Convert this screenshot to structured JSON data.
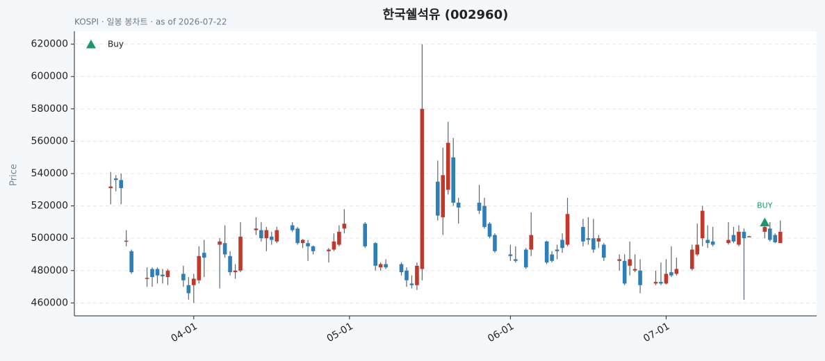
{
  "chart_data": {
    "type": "candlestick",
    "title": "한국쉘석유 (002960)",
    "subtitle": "KOSPI · 일봉 봉차트 · as of 2026-07-22",
    "ylabel": "Price",
    "up_color": "#c0392b",
    "down_color": "#2e7fb8",
    "wick_color": "#5a6570",
    "x": [
      "2026-03-16",
      "2026-03-17",
      "2026-03-18",
      "2026-03-19",
      "2026-03-20",
      "2026-03-23",
      "2026-03-24",
      "2026-03-25",
      "2026-03-26",
      "2026-03-27",
      "2026-03-30",
      "2026-03-31",
      "2026-04-01",
      "2026-04-02",
      "2026-04-03",
      "2026-04-06",
      "2026-04-07",
      "2026-04-08",
      "2026-04-09",
      "2026-04-10",
      "2026-04-13",
      "2026-04-14",
      "2026-04-15",
      "2026-04-16",
      "2026-04-17",
      "2026-04-20",
      "2026-04-21",
      "2026-04-22",
      "2026-04-23",
      "2026-04-24",
      "2026-04-27",
      "2026-04-28",
      "2026-04-29",
      "2026-04-30",
      "2026-05-04",
      "2026-05-06",
      "2026-05-07",
      "2026-05-08",
      "2026-05-11",
      "2026-05-12",
      "2026-05-13",
      "2026-05-14",
      "2026-05-15",
      "2026-05-18",
      "2026-05-19",
      "2026-05-20",
      "2026-05-21",
      "2026-05-22",
      "2026-05-26",
      "2026-05-27",
      "2026-05-28",
      "2026-05-29",
      "2026-06-01",
      "2026-06-02",
      "2026-06-04",
      "2026-06-05",
      "2026-06-08",
      "2026-06-09",
      "2026-06-10",
      "2026-06-11",
      "2026-06-12",
      "2026-06-15",
      "2026-06-16",
      "2026-06-17",
      "2026-06-18",
      "2026-06-19",
      "2026-06-22",
      "2026-06-23",
      "2026-06-24",
      "2026-06-25",
      "2026-06-26",
      "2026-06-29",
      "2026-06-30",
      "2026-07-01",
      "2026-07-02",
      "2026-07-03",
      "2026-07-06",
      "2026-07-07",
      "2026-07-08",
      "2026-07-09",
      "2026-07-10",
      "2026-07-13",
      "2026-07-14",
      "2026-07-15",
      "2026-07-16",
      "2026-07-17",
      "2026-07-20",
      "2026-07-21",
      "2026-07-22",
      "2026-07-23"
    ],
    "open": [
      531000,
      537000,
      536000,
      498000,
      492000,
      475000,
      481000,
      481000,
      477500,
      476000,
      478000,
      471000,
      471000,
      474000,
      491000,
      496000,
      497000,
      489000,
      479000,
      480000,
      505000,
      505000,
      500000,
      501000,
      498000,
      508000,
      506000,
      497000,
      497000,
      495000,
      492000,
      493000,
      496000,
      506000,
      509000,
      497000,
      482000,
      484000,
      484000,
      480000,
      472000,
      471000,
      481000,
      535000,
      513000,
      530000,
      550000,
      522000,
      522000,
      520000,
      509000,
      502000,
      490000,
      487000,
      493000,
      493000,
      498000,
      490000,
      493000,
      499000,
      496000,
      507000,
      500000,
      500000,
      498000,
      496000,
      486000,
      486000,
      483000,
      480000,
      480000,
      472000,
      473000,
      472000,
      479000,
      478000,
      481000,
      490000,
      500000,
      499000,
      498000,
      497000,
      502000,
      496000,
      504000,
      501000,
      504000,
      506000,
      502000,
      497000
    ],
    "high": [
      541000,
      539000,
      540000,
      505000,
      493000,
      482000,
      482000,
      482000,
      481000,
      481000,
      483000,
      476000,
      478000,
      495000,
      499000,
      500000,
      508000,
      492000,
      484000,
      510000,
      513000,
      510000,
      507000,
      504000,
      507000,
      510000,
      507000,
      499500,
      499000,
      495500,
      494000,
      503000,
      508000,
      518000,
      510000,
      497500,
      485000,
      487000,
      485000,
      482000,
      477000,
      485000,
      620000,
      548000,
      556000,
      572000,
      562000,
      525000,
      533000,
      525000,
      510000,
      503000,
      496000,
      495000,
      494000,
      516000,
      498500,
      492000,
      496000,
      503000,
      525000,
      512000,
      513000,
      512000,
      502000,
      497000,
      490000,
      490000,
      498000,
      490000,
      487000,
      480000,
      485000,
      487000,
      495000,
      488000,
      496000,
      509000,
      520000,
      508000,
      507000,
      510000,
      507000,
      508000,
      506000,
      501500,
      512000,
      510000,
      503000,
      511000
    ],
    "low": [
      521000,
      529000,
      521000,
      495000,
      478000,
      470000,
      470000,
      472000,
      472000,
      471000,
      470000,
      462000,
      460000,
      472000,
      476000,
      469000,
      488000,
      477000,
      475000,
      479000,
      502000,
      498000,
      492000,
      496000,
      497000,
      504000,
      496000,
      494000,
      486000,
      490000,
      485000,
      492000,
      495000,
      503000,
      494000,
      480000,
      480000,
      481000,
      477000,
      470000,
      469000,
      468000,
      474000,
      511000,
      502000,
      527000,
      520000,
      509000,
      515000,
      506000,
      500000,
      491000,
      486000,
      485000,
      481000,
      489000,
      484000,
      485000,
      487000,
      491000,
      495000,
      495000,
      496000,
      491000,
      494000,
      486000,
      480000,
      471000,
      477000,
      479000,
      466000,
      471000,
      471000,
      471500,
      476000,
      477000,
      480000,
      489000,
      495000,
      494000,
      495000,
      496000,
      497000,
      495000,
      462000,
      500800,
      500000,
      498000,
      497000,
      497000
    ],
    "close": [
      532000,
      536000,
      531000,
      498500,
      479000,
      475500,
      476000,
      477000,
      476500,
      480000,
      474000,
      466000,
      475000,
      489000,
      488000,
      498000,
      490000,
      479000,
      480000,
      501000,
      506000,
      500000,
      505000,
      499000,
      505000,
      505000,
      497000,
      499000,
      495000,
      492000,
      493000,
      498000,
      504000,
      509000,
      495000,
      483000,
      484000,
      482000,
      479000,
      474000,
      471000,
      483000,
      580000,
      514000,
      539000,
      559000,
      522000,
      519000,
      517000,
      507000,
      501000,
      492000,
      489000,
      486000,
      482000,
      502000,
      485000,
      486000,
      492000,
      494000,
      515000,
      498000,
      499000,
      493000,
      500000,
      488000,
      487000,
      472000,
      487000,
      481000,
      471000,
      473000,
      472000,
      478000,
      477000,
      481000,
      493000,
      496000,
      517000,
      497000,
      496000,
      499000,
      498000,
      504000,
      500000,
      501200,
      507000,
      499000,
      497500,
      504000
    ],
    "signals": [
      {
        "name": "Buy",
        "label": "BUY",
        "color": "#1a9a6c",
        "x": [
          "2026-07-20"
        ],
        "y": [
          509800
        ]
      }
    ],
    "legend": "upper left",
    "xlim": [
      "2026-03-09",
      "2026-07-30"
    ],
    "xticks": [
      {
        "value": "2026-04-01",
        "label": "04-01"
      },
      {
        "value": "2026-05-01",
        "label": "05-01"
      },
      {
        "value": "2026-06-01",
        "label": "06-01"
      },
      {
        "value": "2026-07-01",
        "label": "07-01"
      }
    ],
    "ylim": [
      452000,
      628000
    ],
    "yticks": [
      460000,
      480000,
      500000,
      520000,
      540000,
      560000,
      580000,
      600000,
      620000
    ],
    "grid": true
  }
}
